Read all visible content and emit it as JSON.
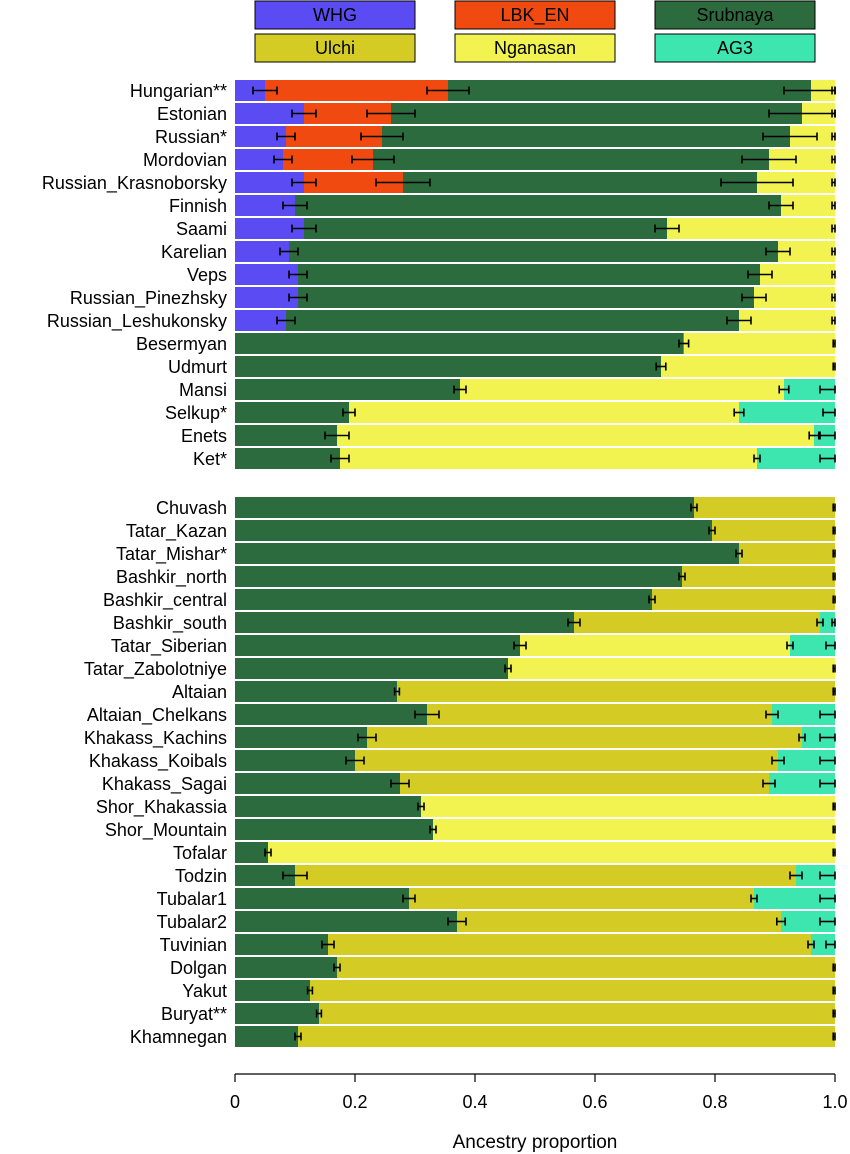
{
  "chart_data": {
    "type": "stacked-horizontal-bar",
    "xlabel": "Ancestry proportion",
    "xlim": [
      0,
      1
    ],
    "x_ticks": [
      0,
      0.2,
      0.4,
      0.6,
      0.8,
      1.0
    ],
    "x_tick_labels": [
      "0",
      "0.2",
      "0.4",
      "0.6",
      "0.8",
      "1.0"
    ],
    "legend": [
      {
        "name": "WHG",
        "color": "#5a4cf2"
      },
      {
        "name": "LBK_EN",
        "color": "#f04a10"
      },
      {
        "name": "Srubnaya",
        "color": "#2c6b3e"
      },
      {
        "name": "Ulchi",
        "color": "#d4cc25"
      },
      {
        "name": "Nganasan",
        "color": "#f2f250"
      },
      {
        "name": "AG3",
        "color": "#3ce6ae"
      }
    ],
    "panels": [
      {
        "components": [
          "WHG",
          "LBK_EN",
          "Srubnaya",
          "Nganasan",
          "AG3"
        ],
        "bars": [
          {
            "label": "Hungarian**",
            "values": [
              0.05,
              0.305,
              0.605,
              0.04,
              0
            ],
            "errors": [
              0.02,
              0.035,
              0.045,
              0.005,
              0
            ]
          },
          {
            "label": "Estonian",
            "values": [
              0.115,
              0.145,
              0.685,
              0.055,
              0
            ],
            "errors": [
              0.02,
              0.04,
              0.055,
              0.005,
              0
            ]
          },
          {
            "label": "Russian*",
            "values": [
              0.085,
              0.16,
              0.68,
              0.075,
              0
            ],
            "errors": [
              0.015,
              0.035,
              0.045,
              0.005,
              0
            ]
          },
          {
            "label": "Mordovian",
            "values": [
              0.08,
              0.15,
              0.66,
              0.11,
              0
            ],
            "errors": [
              0.015,
              0.035,
              0.045,
              0.005,
              0
            ]
          },
          {
            "label": "Russian_Krasnoborsky",
            "values": [
              0.115,
              0.165,
              0.59,
              0.13,
              0
            ],
            "errors": [
              0.02,
              0.045,
              0.06,
              0.005,
              0
            ]
          },
          {
            "label": "Finnish",
            "values": [
              0.1,
              0,
              0.81,
              0.09,
              0
            ],
            "errors": [
              0.02,
              0,
              0.02,
              0.005,
              0
            ]
          },
          {
            "label": "Saami",
            "values": [
              0.115,
              0,
              0.605,
              0.28,
              0
            ],
            "errors": [
              0.02,
              0,
              0.02,
              0.005,
              0
            ]
          },
          {
            "label": "Karelian",
            "values": [
              0.09,
              0,
              0.815,
              0.095,
              0
            ],
            "errors": [
              0.015,
              0,
              0.02,
              0.005,
              0
            ]
          },
          {
            "label": "Veps",
            "values": [
              0.105,
              0,
              0.77,
              0.125,
              0
            ],
            "errors": [
              0.015,
              0,
              0.02,
              0.005,
              0
            ]
          },
          {
            "label": "Russian_Pinezhsky",
            "values": [
              0.105,
              0,
              0.76,
              0.135,
              0
            ],
            "errors": [
              0.015,
              0,
              0.02,
              0.005,
              0
            ]
          },
          {
            "label": "Russian_Leshukonsky",
            "values": [
              0.085,
              0,
              0.755,
              0.16,
              0
            ],
            "errors": [
              0.015,
              0,
              0.02,
              0.005,
              0
            ]
          },
          {
            "label": "Besermyan",
            "values": [
              0,
              0,
              0.748,
              0.252,
              0
            ],
            "errors": [
              0,
              0,
              0.008,
              0.003,
              0
            ]
          },
          {
            "label": "Udmurt",
            "values": [
              0,
              0,
              0.71,
              0.29,
              0
            ],
            "errors": [
              0,
              0,
              0.008,
              0.003,
              0
            ]
          },
          {
            "label": "Mansi",
            "values": [
              0,
              0,
              0.375,
              0.54,
              0.085
            ],
            "errors": [
              0,
              0,
              0.01,
              0.008,
              0.025
            ]
          },
          {
            "label": "Selkup*",
            "values": [
              0,
              0,
              0.19,
              0.65,
              0.16
            ],
            "errors": [
              0,
              0,
              0.01,
              0.008,
              0.02
            ]
          },
          {
            "label": "Enets",
            "values": [
              0,
              0,
              0.17,
              0.795,
              0.035
            ],
            "errors": [
              0,
              0,
              0.02,
              0.008,
              0.025
            ]
          },
          {
            "label": "Ket*",
            "values": [
              0,
              0,
              0.175,
              0.695,
              0.13
            ],
            "errors": [
              0,
              0,
              0.015,
              0.005,
              0.025
            ]
          }
        ]
      },
      {
        "components": [
          "Srubnaya",
          "Ulchi",
          "Nganasan",
          "AG3"
        ],
        "bars": [
          {
            "label": "Chuvash",
            "values": [
              0.765,
              0.235,
              0,
              0
            ],
            "errors": [
              0.005,
              0.003,
              0,
              0
            ]
          },
          {
            "label": "Tatar_Kazan",
            "values": [
              0.795,
              0.205,
              0,
              0
            ],
            "errors": [
              0.005,
              0.003,
              0,
              0
            ]
          },
          {
            "label": "Tatar_Mishar*",
            "values": [
              0.84,
              0.16,
              0,
              0
            ],
            "errors": [
              0.005,
              0.003,
              0,
              0
            ]
          },
          {
            "label": "Bashkir_north",
            "values": [
              0.745,
              0.255,
              0,
              0
            ],
            "errors": [
              0.005,
              0.003,
              0,
              0
            ]
          },
          {
            "label": "Bashkir_central",
            "values": [
              0.695,
              0.305,
              0,
              0
            ],
            "errors": [
              0.005,
              0.003,
              0,
              0
            ]
          },
          {
            "label": "Bashkir_south",
            "values": [
              0.565,
              0.41,
              0,
              0.025
            ],
            "errors": [
              0.01,
              0.005,
              0,
              0.005
            ]
          },
          {
            "label": "Tatar_Siberian",
            "values": [
              0.475,
              0,
              0.45,
              0.075
            ],
            "errors": [
              0.01,
              0,
              0.005,
              0.015
            ]
          },
          {
            "label": "Tatar_Zabolotniye",
            "values": [
              0.455,
              0,
              0.545,
              0
            ],
            "errors": [
              0.005,
              0,
              0.003,
              0
            ]
          },
          {
            "label": "Altaian",
            "values": [
              0.27,
              0.73,
              0,
              0
            ],
            "errors": [
              0.004,
              0.003,
              0,
              0
            ]
          },
          {
            "label": "Altaian_Chelkans",
            "values": [
              0.32,
              0.575,
              0,
              0.105
            ],
            "errors": [
              0.02,
              0.01,
              0,
              0.025
            ]
          },
          {
            "label": "Khakass_Kachins",
            "values": [
              0.22,
              0.725,
              0,
              0.055
            ],
            "errors": [
              0.015,
              0.005,
              0,
              0.025
            ]
          },
          {
            "label": "Khakass_Koibals",
            "values": [
              0.2,
              0.705,
              0,
              0.095
            ],
            "errors": [
              0.015,
              0.01,
              0,
              0.025
            ]
          },
          {
            "label": "Khakass_Sagai",
            "values": [
              0.275,
              0.615,
              0,
              0.11
            ],
            "errors": [
              0.015,
              0.01,
              0,
              0.025
            ]
          },
          {
            "label": "Shor_Khakassia",
            "values": [
              0.31,
              0,
              0.69,
              0
            ],
            "errors": [
              0.005,
              0,
              0.003,
              0
            ]
          },
          {
            "label": "Shor_Mountain",
            "values": [
              0.33,
              0,
              0.67,
              0
            ],
            "errors": [
              0.005,
              0,
              0.003,
              0
            ]
          },
          {
            "label": "Tofalar",
            "values": [
              0.055,
              0,
              0.945,
              0
            ],
            "errors": [
              0.005,
              0,
              0.003,
              0
            ]
          },
          {
            "label": "Todzin",
            "values": [
              0.1,
              0.835,
              0,
              0.065
            ],
            "errors": [
              0.02,
              0.01,
              0,
              0.025
            ]
          },
          {
            "label": "Tubalar1",
            "values": [
              0.29,
              0.575,
              0,
              0.135
            ],
            "errors": [
              0.01,
              0.005,
              0,
              0.025
            ]
          },
          {
            "label": "Tubalar2",
            "values": [
              0.37,
              0.54,
              0,
              0.09
            ],
            "errors": [
              0.015,
              0.007,
              0,
              0.025
            ]
          },
          {
            "label": "Tuvinian",
            "values": [
              0.155,
              0.805,
              0,
              0.04
            ],
            "errors": [
              0.01,
              0.005,
              0,
              0.015
            ]
          },
          {
            "label": "Dolgan",
            "values": [
              0.17,
              0.83,
              0,
              0
            ],
            "errors": [
              0.005,
              0.003,
              0,
              0
            ]
          },
          {
            "label": "Yakut",
            "values": [
              0.125,
              0.875,
              0,
              0
            ],
            "errors": [
              0.004,
              0.003,
              0,
              0
            ]
          },
          {
            "label": "Buryat**",
            "values": [
              0.14,
              0.86,
              0,
              0
            ],
            "errors": [
              0.004,
              0.003,
              0,
              0
            ]
          },
          {
            "label": "Khamnegan",
            "values": [
              0.105,
              0.895,
              0,
              0
            ],
            "errors": [
              0.005,
              0.003,
              0,
              0
            ]
          }
        ]
      }
    ]
  }
}
